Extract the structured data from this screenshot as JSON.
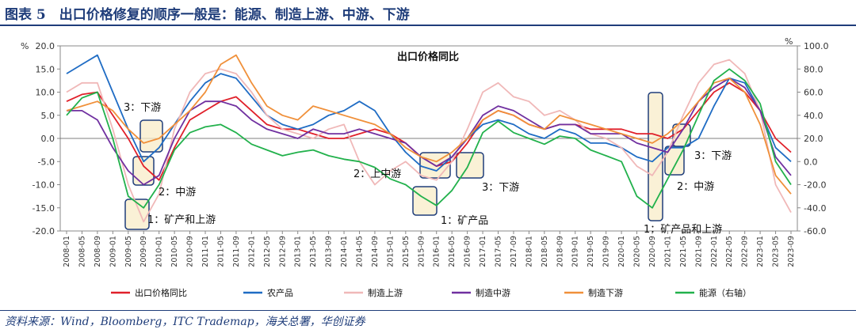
{
  "heading": "图表 5　出口价格修复的顺序一般是：能源、制造上游、中游、下游",
  "source": "资料来源：Wind，Bloomberg，ITC Trademap，海关总署，华创证券",
  "chart_data": {
    "type": "line",
    "title": "出口价格同比",
    "left_unit": "%",
    "right_unit": "%",
    "ylim": [
      -20,
      20
    ],
    "y2lim": [
      -60,
      100
    ],
    "left_ticks": [
      "20.0",
      "15.0",
      "10.0",
      "5.0",
      "0.0",
      "-5.0",
      "-10.0",
      "-15.0",
      "-20.0"
    ],
    "right_ticks": [
      "100.0",
      "80.0",
      "60.0",
      "40.0",
      "20.0",
      "0.0",
      "-20.0",
      "-40.0",
      "-60.0"
    ],
    "x": [
      "2008-01",
      "2008-05",
      "2008-09",
      "2009-01",
      "2009-05",
      "2009-09",
      "2010-01",
      "2010-05",
      "2010-09",
      "2011-01",
      "2011-05",
      "2011-09",
      "2012-01",
      "2012-05",
      "2012-09",
      "2013-01",
      "2013-05",
      "2013-09",
      "2014-01",
      "2014-05",
      "2014-09",
      "2015-01",
      "2015-05",
      "2015-09",
      "2016-01",
      "2016-05",
      "2016-09",
      "2017-01",
      "2017-05",
      "2017-09",
      "2018-01",
      "2018-05",
      "2018-09",
      "2019-01",
      "2019-05",
      "2019-09",
      "2020-01",
      "2020-05",
      "2020-09",
      "2021-01",
      "2021-05",
      "2021-09",
      "2022-01",
      "2022-05",
      "2022-09",
      "2023-01",
      "2023-05",
      "2023-09"
    ],
    "series": [
      {
        "name": "出口价格同比",
        "color": "#e0202a",
        "axis": "left",
        "values": [
          8,
          9.5,
          10,
          5,
          0,
          -6,
          -9,
          -2,
          4,
          6,
          8,
          9,
          6,
          3,
          2,
          2,
          1,
          0,
          0,
          1,
          2,
          1,
          -1,
          -4,
          -6,
          -5,
          -1,
          4,
          6,
          5,
          3,
          2,
          3,
          3,
          2,
          2,
          2,
          1,
          1,
          0,
          2,
          6,
          10,
          12,
          10,
          6,
          0,
          -3
        ]
      },
      {
        "name": "农产品",
        "color": "#1f6cc4",
        "axis": "left",
        "values": [
          14,
          16,
          18,
          10,
          2,
          -5,
          -2,
          3,
          8,
          12,
          14,
          13,
          9,
          5,
          3,
          2,
          3,
          5,
          6,
          8,
          6,
          1,
          -3,
          -6,
          -7,
          -4,
          0,
          3,
          4,
          3,
          1,
          0,
          2,
          1,
          -1,
          -1,
          -2,
          -4,
          -5,
          -2,
          -2,
          0,
          7,
          13,
          12,
          6,
          -2,
          -5
        ]
      },
      {
        "name": "制造上游",
        "color": "#f0b8b8",
        "axis": "left",
        "values": [
          10,
          12,
          12,
          2,
          -10,
          -18,
          -12,
          2,
          10,
          14,
          15,
          14,
          10,
          5,
          2,
          1,
          0,
          2,
          3,
          -5,
          -10,
          -7,
          -5,
          -8,
          -9,
          -5,
          2,
          10,
          12,
          9,
          8,
          5,
          6,
          4,
          1,
          0,
          -2,
          -6,
          -8,
          -3,
          5,
          12,
          16,
          17,
          14,
          6,
          -10,
          -16
        ]
      },
      {
        "name": "制造中游",
        "color": "#7030a0",
        "axis": "left",
        "values": [
          6,
          6,
          4,
          -2,
          -7,
          -10,
          -8,
          0,
          6,
          8,
          8,
          7,
          4,
          2,
          1,
          0,
          2,
          1,
          1,
          2,
          1,
          0,
          -1,
          -4,
          -6,
          -4,
          0,
          5,
          7,
          6,
          4,
          2,
          3,
          3,
          1,
          1,
          1,
          -1,
          -2,
          -3,
          2,
          8,
          11,
          13,
          11,
          6,
          -4,
          -8
        ]
      },
      {
        "name": "制造下游",
        "color": "#f0903a",
        "axis": "left",
        "values": [
          6,
          7,
          8,
          6,
          2,
          -1,
          0,
          3,
          6,
          10,
          16,
          18,
          12,
          7,
          5,
          4,
          7,
          6,
          5,
          4,
          3,
          1,
          -2,
          -4,
          -5,
          -3,
          0,
          4,
          6,
          5,
          3,
          2,
          5,
          4,
          3,
          2,
          1,
          0,
          -1,
          1,
          4,
          8,
          12,
          13,
          10,
          3,
          -8,
          -12
        ]
      },
      {
        "name": "能源（右轴）",
        "color": "#22b14c",
        "axis": "right",
        "values": [
          40,
          55,
          60,
          20,
          -30,
          -40,
          -20,
          10,
          25,
          30,
          32,
          25,
          15,
          10,
          5,
          8,
          10,
          5,
          2,
          0,
          -5,
          -15,
          -20,
          -30,
          -38,
          -25,
          -5,
          25,
          35,
          25,
          20,
          15,
          22,
          20,
          10,
          5,
          0,
          -30,
          -40,
          -15,
          10,
          40,
          70,
          80,
          70,
          50,
          0,
          -20
        ]
      }
    ],
    "annotations": [
      "1：矿产和上游",
      "2：中游",
      "3：下游",
      "1：矿产品",
      "2：上中游",
      "3：下游",
      "1：矿产品和上游",
      "2：中游",
      "3：下游"
    ],
    "legend_position": "bottom",
    "grid": false
  }
}
